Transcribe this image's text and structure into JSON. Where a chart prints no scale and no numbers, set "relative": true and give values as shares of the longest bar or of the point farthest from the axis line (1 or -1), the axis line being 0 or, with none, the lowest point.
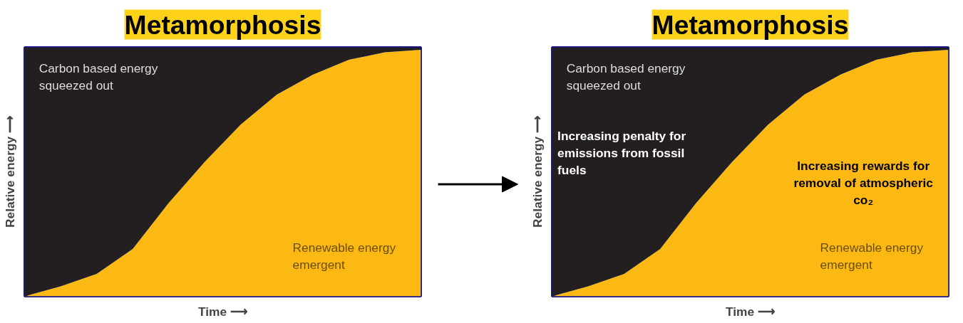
{
  "chart_data": [
    {
      "type": "area",
      "title": "Metamorphosis",
      "xlabel": "Time ⟶",
      "ylabel": "Relative energy ⟶",
      "stacked": true,
      "relative": true,
      "tick_labels": false,
      "categories": [
        null,
        null,
        null,
        null,
        null,
        null,
        null,
        null,
        null,
        null,
        null,
        null
      ],
      "series": [
        {
          "name": "Renewable energy\nemergent",
          "color": "#fdb913",
          "values": [
            0,
            0.04,
            0.09,
            0.19,
            0.375,
            0.54,
            0.69,
            0.81,
            0.89,
            0.95,
            0.98,
            0.99
          ]
        },
        {
          "name": "Carbon based energy\nsqueezed out",
          "color": "#231f20",
          "values": [
            1,
            0.96,
            0.91,
            0.81,
            0.625,
            0.46,
            0.31,
            0.19,
            0.11,
            0.05,
            0.02,
            0.01
          ]
        }
      ]
    },
    {
      "type": "area",
      "title": "Metamorphosis",
      "xlabel": "Time ⟶",
      "ylabel": "Relative energy ⟶",
      "stacked": true,
      "relative": true,
      "tick_labels": false,
      "categories": [
        null,
        null,
        null,
        null,
        null,
        null,
        null,
        null,
        null,
        null,
        null,
        null
      ],
      "series": [
        {
          "name": "Renewable energy\nemergent",
          "color": "#fdb913",
          "values": [
            0,
            0.04,
            0.09,
            0.19,
            0.375,
            0.54,
            0.69,
            0.81,
            0.89,
            0.95,
            0.98,
            0.99
          ]
        },
        {
          "name": "Carbon based energy\nsqueezed out",
          "color": "#231f20",
          "values": [
            1,
            0.96,
            0.91,
            0.81,
            0.625,
            0.46,
            0.31,
            0.19,
            0.11,
            0.05,
            0.02,
            0.01
          ]
        }
      ],
      "annotations": [
        "Increasing penalty for\nemissions from fossil\nfuels",
        "Increasing rewards for\nremoval of atmospheric\nco₂"
      ]
    }
  ]
}
